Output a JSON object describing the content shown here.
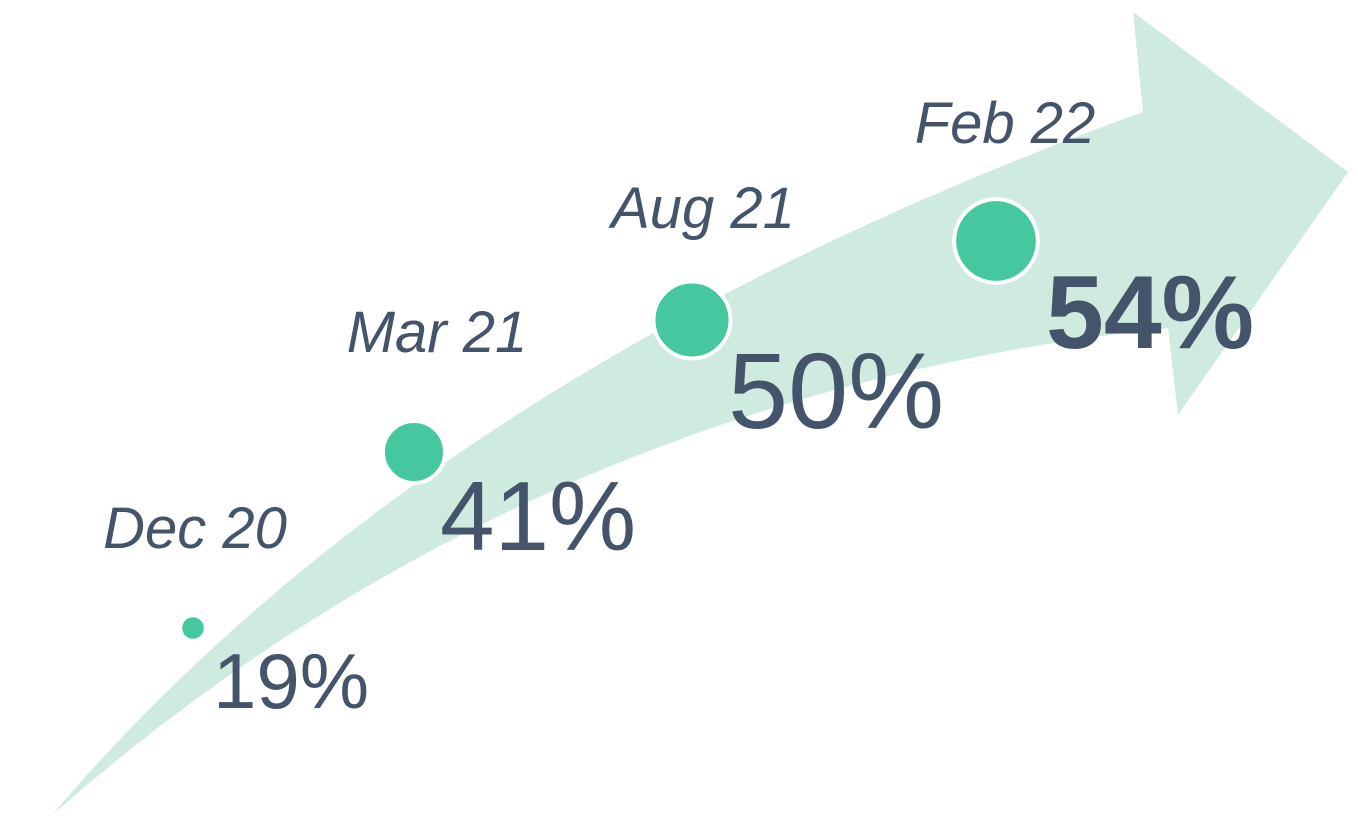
{
  "chart_data": {
    "type": "timeline",
    "categories": [
      "Dec 20",
      "Mar 21",
      "Aug 21",
      "Feb 22"
    ],
    "values": [
      19,
      41,
      50,
      54
    ],
    "value_labels": [
      "19%",
      "41%",
      "50%",
      "54%"
    ],
    "color": "#45c8a0"
  }
}
